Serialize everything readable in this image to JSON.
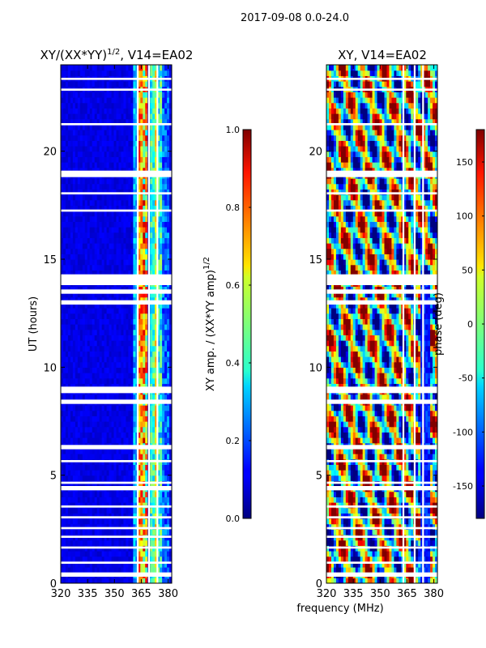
{
  "figure_title": "2017-09-08 0.0-24.0",
  "chart_data": [
    {
      "type": "heatmap",
      "title": "XY/(XX*YY)",
      "title_superscript": "1/2",
      "title_suffix": ", V14=EA02",
      "xlabel": "frequency (MHz)",
      "ylabel": "UT (hours)",
      "xlim": [
        320,
        382
      ],
      "ylim": [
        0,
        24
      ],
      "x_ticks": [
        "320",
        "335",
        "350",
        "365",
        "380"
      ],
      "y_ticks": [
        "0",
        "5",
        "10",
        "15",
        "20"
      ],
      "colorbar": {
        "label": "XY amp. / (XX*YY amp)",
        "label_superscript": "1/2",
        "range": [
          0.0,
          1.0
        ],
        "ticks": [
          "0.0",
          "0.2",
          "0.4",
          "0.6",
          "0.8",
          "1.0"
        ],
        "colormap": "jet"
      }
    },
    {
      "type": "heatmap",
      "title": "XY, V14=EA02",
      "xlabel": "frequency (MHz)",
      "ylabel": "",
      "xlim": [
        320,
        382
      ],
      "ylim": [
        0,
        24
      ],
      "x_ticks": [
        "320",
        "335",
        "350",
        "365",
        "380"
      ],
      "y_ticks": [
        "0",
        "5",
        "10",
        "15",
        "20"
      ],
      "colorbar": {
        "label": "phase (deg)",
        "range": [
          -180,
          180
        ],
        "ticks": [
          "-150",
          "-100",
          "-50",
          "0",
          "50",
          "100",
          "150"
        ],
        "colormap": "jet"
      }
    }
  ],
  "flagged_time_ranges_hours": [
    [
      0.3,
      0.5
    ],
    [
      0.9,
      1.0
    ],
    [
      1.6,
      1.7
    ],
    [
      2.1,
      2.2
    ],
    [
      2.5,
      2.6
    ],
    [
      3.0,
      3.1
    ],
    [
      3.5,
      3.6
    ],
    [
      4.3,
      4.5
    ],
    [
      4.6,
      4.7
    ],
    [
      5.6,
      5.7
    ],
    [
      6.2,
      6.4
    ],
    [
      8.3,
      8.5
    ],
    [
      8.8,
      9.1
    ],
    [
      12.9,
      13.1
    ],
    [
      13.4,
      13.6
    ],
    [
      13.8,
      14.3
    ],
    [
      17.2,
      17.3
    ],
    [
      18.0,
      18.1
    ],
    [
      18.8,
      19.1
    ],
    [
      21.2,
      21.3
    ],
    [
      22.8,
      22.9
    ],
    [
      23.3,
      23.4
    ]
  ],
  "flagged_freq_columns_mhz": [
    [
      362.5,
      363.5
    ],
    [
      368.8,
      369.8
    ],
    [
      373.5,
      374.5
    ]
  ]
}
